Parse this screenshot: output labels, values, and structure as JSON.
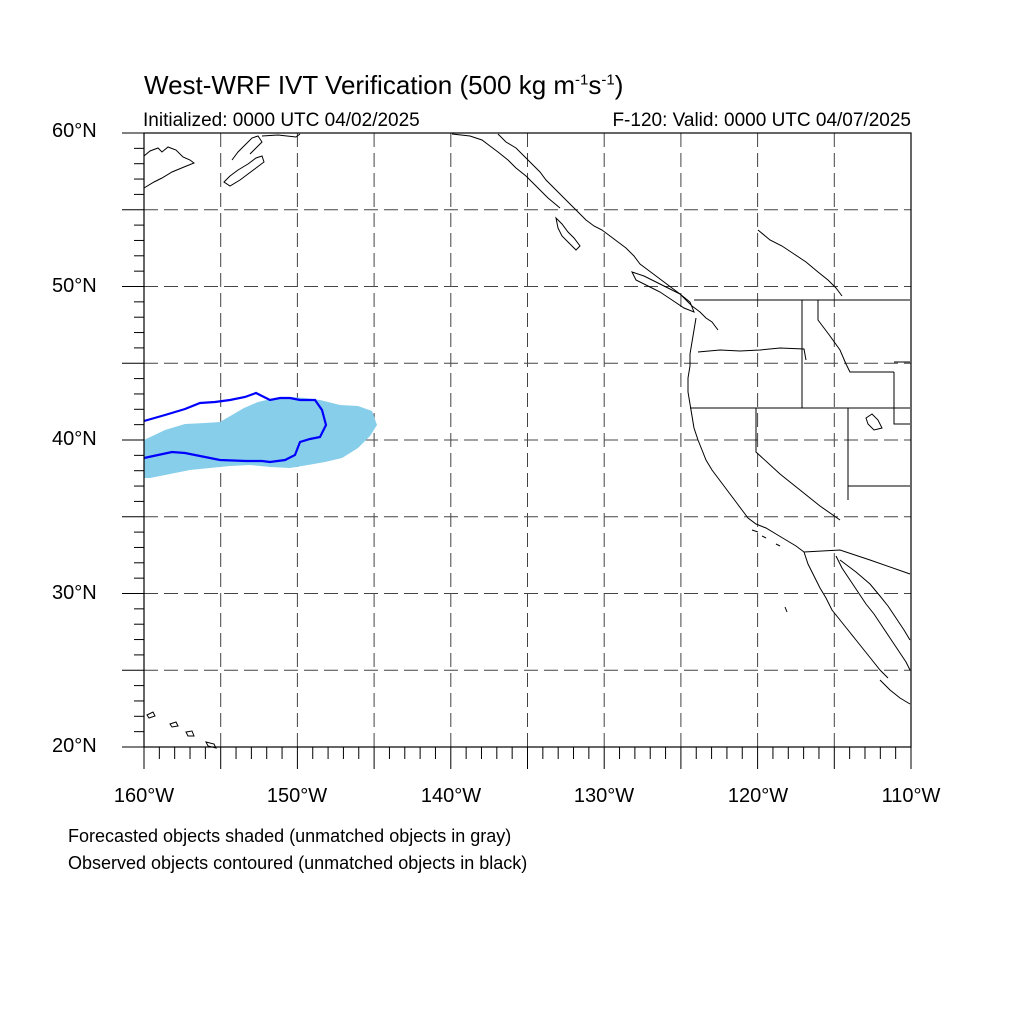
{
  "title": {
    "prefix": "West-WRF IVT Verification (500 kg m",
    "sup1": "-1",
    "mid": "s",
    "sup2": "-1",
    "suffix": ")"
  },
  "initialized": "Initialized: 0000 UTC 04/02/2025",
  "valid": "F-120: Valid: 0000 UTC 04/07/2025",
  "map": {
    "lon_range": [
      -160,
      -110
    ],
    "lat_range": [
      20,
      60
    ],
    "lat_labels": [
      "60°N",
      "50°N",
      "40°N",
      "30°N",
      "20°N"
    ],
    "lon_labels": [
      "160°W",
      "150°W",
      "140°W",
      "130°W",
      "120°W",
      "110°W"
    ],
    "grid": "dashed every 5°",
    "colors": {
      "forecast_fill": "#87ceeb",
      "observed_contour": "#0000ff",
      "coast": "#000000"
    }
  },
  "legend": {
    "line1": "Forecasted objects shaded (unmatched objects in gray)",
    "line2": "Observed objects contoured (unmatched objects in black)"
  }
}
